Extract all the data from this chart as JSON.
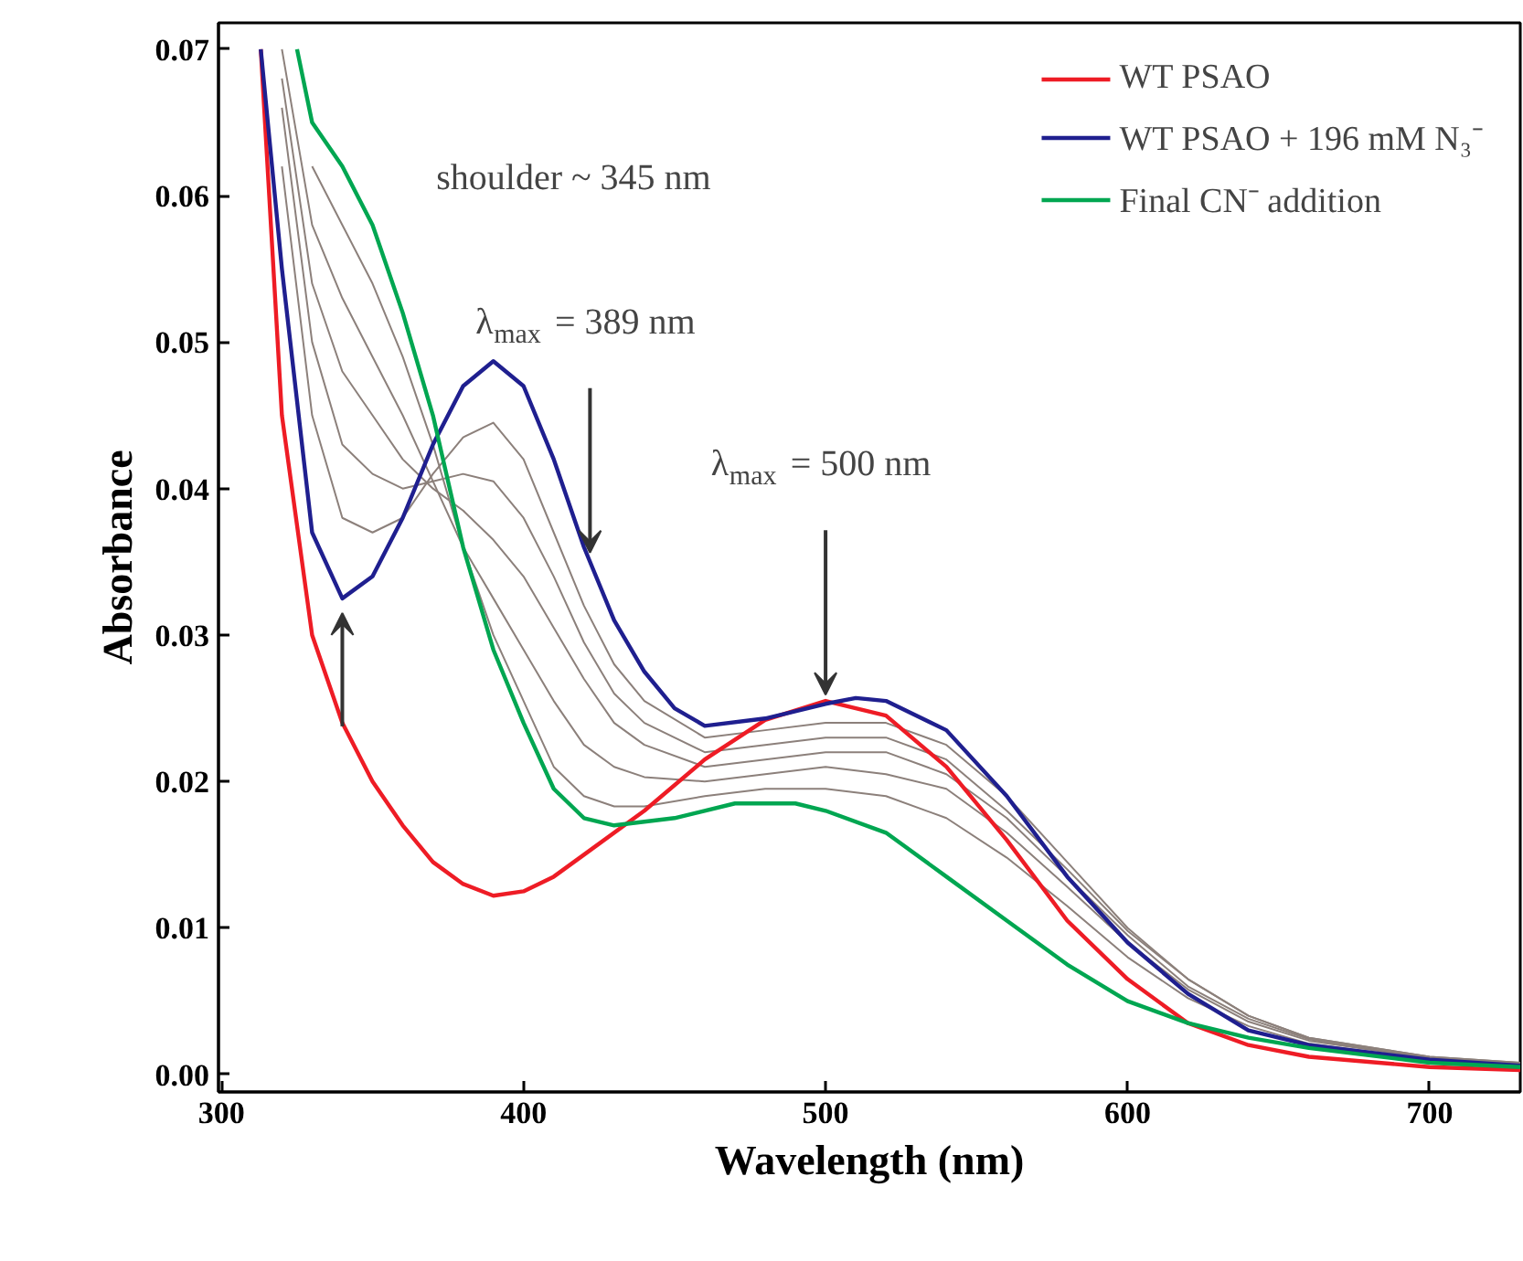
{
  "chart_data": {
    "type": "line",
    "xlabel": "Wavelength (nm)",
    "ylabel": "Absorbance",
    "xlim": [
      299,
      730
    ],
    "ylim": [
      -0.0012,
      0.0718
    ],
    "xticks": [
      300,
      400,
      500,
      600,
      700
    ],
    "yticks": [
      {
        "value": 0,
        "label": "0.00"
      },
      0.01,
      0.02,
      0.03,
      0.04,
      0.05,
      0.06,
      0.07
    ],
    "grid": false,
    "legend": "top right",
    "annotations": [
      "shoulder ~ 345 nm",
      {
        "text": "λ$_{max}$ = 389 nm",
        "x": 422,
        "y": 0.035
      },
      {
        "text": "λ$_{max}$ = 500 nm",
        "x": 500,
        "y": 0.0253
      }
    ],
    "series": [
      {
        "color": "#8c807b",
        "x": [
          320,
          330,
          340,
          350,
          360,
          370,
          380,
          390,
          400,
          410,
          420,
          430,
          440,
          460,
          480,
          500,
          520,
          540,
          560,
          580,
          600,
          620,
          640,
          660,
          700,
          730
        ],
        "values": [
          0.062,
          0.045,
          0.038,
          0.037,
          0.038,
          0.041,
          0.0435,
          0.0445,
          0.042,
          0.037,
          0.032,
          0.028,
          0.0255,
          0.023,
          0.0235,
          0.024,
          0.024,
          0.0225,
          0.019,
          0.0145,
          0.01,
          0.0065,
          0.004,
          0.0025,
          0.0012,
          0.0008
        ]
      },
      {
        "color": "#8c807b",
        "x": [
          320,
          330,
          340,
          350,
          360,
          370,
          380,
          390,
          400,
          410,
          420,
          430,
          440,
          460,
          480,
          500,
          520,
          540,
          560,
          580,
          600,
          620,
          640,
          660,
          700,
          730
        ],
        "values": [
          0.066,
          0.05,
          0.043,
          0.041,
          0.04,
          0.0405,
          0.041,
          0.0405,
          0.038,
          0.034,
          0.0295,
          0.026,
          0.024,
          0.022,
          0.0225,
          0.023,
          0.023,
          0.0215,
          0.018,
          0.014,
          0.0098,
          0.0065,
          0.004,
          0.0025,
          0.0012,
          0.0008
        ]
      },
      {
        "color": "#8c807b",
        "x": [
          320,
          330,
          340,
          350,
          360,
          370,
          380,
          390,
          400,
          410,
          420,
          430,
          440,
          460,
          480,
          500,
          520,
          540,
          560,
          580,
          600,
          620,
          640,
          660,
          700,
          730
        ],
        "values": [
          0.068,
          0.054,
          0.048,
          0.045,
          0.042,
          0.04,
          0.0385,
          0.0365,
          0.034,
          0.0305,
          0.027,
          0.024,
          0.0225,
          0.021,
          0.0215,
          0.022,
          0.022,
          0.0205,
          0.0175,
          0.0135,
          0.0095,
          0.006,
          0.0038,
          0.0024,
          0.0011,
          0.0007
        ]
      },
      {
        "color": "#8c807b",
        "x": [
          320,
          330,
          340,
          350,
          360,
          370,
          380,
          390,
          400,
          410,
          420,
          430,
          440,
          460,
          480,
          500,
          520,
          540,
          560,
          580,
          600,
          620,
          640,
          660,
          700,
          730
        ],
        "values": [
          0.07,
          0.058,
          0.053,
          0.049,
          0.045,
          0.0405,
          0.036,
          0.0325,
          0.029,
          0.0255,
          0.0225,
          0.021,
          0.0203,
          0.02,
          0.0205,
          0.021,
          0.0205,
          0.0195,
          0.0165,
          0.0128,
          0.009,
          0.0058,
          0.0036,
          0.0023,
          0.0011,
          0.0007
        ]
      },
      {
        "color": "#8c807b",
        "x": [
          330,
          340,
          350,
          360,
          370,
          380,
          390,
          400,
          410,
          420,
          430,
          440,
          460,
          480,
          500,
          520,
          540,
          560,
          580,
          600,
          620,
          640,
          660,
          700,
          730
        ],
        "values": [
          0.062,
          0.058,
          0.054,
          0.049,
          0.043,
          0.036,
          0.03,
          0.0255,
          0.021,
          0.019,
          0.0183,
          0.0183,
          0.019,
          0.0195,
          0.0195,
          0.019,
          0.0175,
          0.0148,
          0.0115,
          0.008,
          0.0052,
          0.0033,
          0.0021,
          0.001,
          0.0006
        ]
      },
      {
        "name": "WT PSAO",
        "color": "#ee1c25",
        "x": [
          313,
          320,
          330,
          340,
          350,
          360,
          370,
          380,
          390,
          400,
          410,
          420,
          440,
          460,
          480,
          500,
          520,
          540,
          560,
          580,
          600,
          620,
          640,
          660,
          700,
          730
        ],
        "values": [
          0.07,
          0.045,
          0.03,
          0.024,
          0.02,
          0.017,
          0.0145,
          0.013,
          0.0122,
          0.0125,
          0.0135,
          0.015,
          0.018,
          0.0215,
          0.0242,
          0.0255,
          0.0245,
          0.021,
          0.016,
          0.0105,
          0.0065,
          0.0035,
          0.002,
          0.0012,
          0.0005,
          0.0003
        ]
      },
      {
        "name": "WT PSAO + 196 mM N₃⁻",
        "color": "#1f1f8f",
        "x": [
          313,
          320,
          330,
          340,
          350,
          360,
          370,
          380,
          390,
          400,
          410,
          420,
          430,
          440,
          450,
          460,
          480,
          500,
          510,
          520,
          540,
          560,
          580,
          600,
          620,
          640,
          660,
          700,
          730
        ],
        "values": [
          0.07,
          0.055,
          0.037,
          0.0325,
          0.034,
          0.038,
          0.043,
          0.047,
          0.0487,
          0.047,
          0.042,
          0.036,
          0.031,
          0.0275,
          0.025,
          0.0238,
          0.0243,
          0.0253,
          0.0257,
          0.0255,
          0.0235,
          0.019,
          0.0135,
          0.009,
          0.0055,
          0.003,
          0.002,
          0.001,
          0.0006
        ]
      },
      {
        "name": "Final CN⁻ addition",
        "color": "#00a651",
        "x": [
          325,
          330,
          340,
          350,
          360,
          370,
          380,
          390,
          400,
          410,
          420,
          430,
          450,
          470,
          490,
          500,
          520,
          540,
          560,
          580,
          600,
          620,
          640,
          660,
          700,
          730
        ],
        "values": [
          0.07,
          0.065,
          0.062,
          0.058,
          0.052,
          0.045,
          0.036,
          0.029,
          0.024,
          0.0195,
          0.0175,
          0.017,
          0.0175,
          0.0185,
          0.0185,
          0.018,
          0.0165,
          0.0135,
          0.0105,
          0.0075,
          0.005,
          0.0035,
          0.0025,
          0.0018,
          0.0008,
          0.0005
        ]
      }
    ]
  }
}
